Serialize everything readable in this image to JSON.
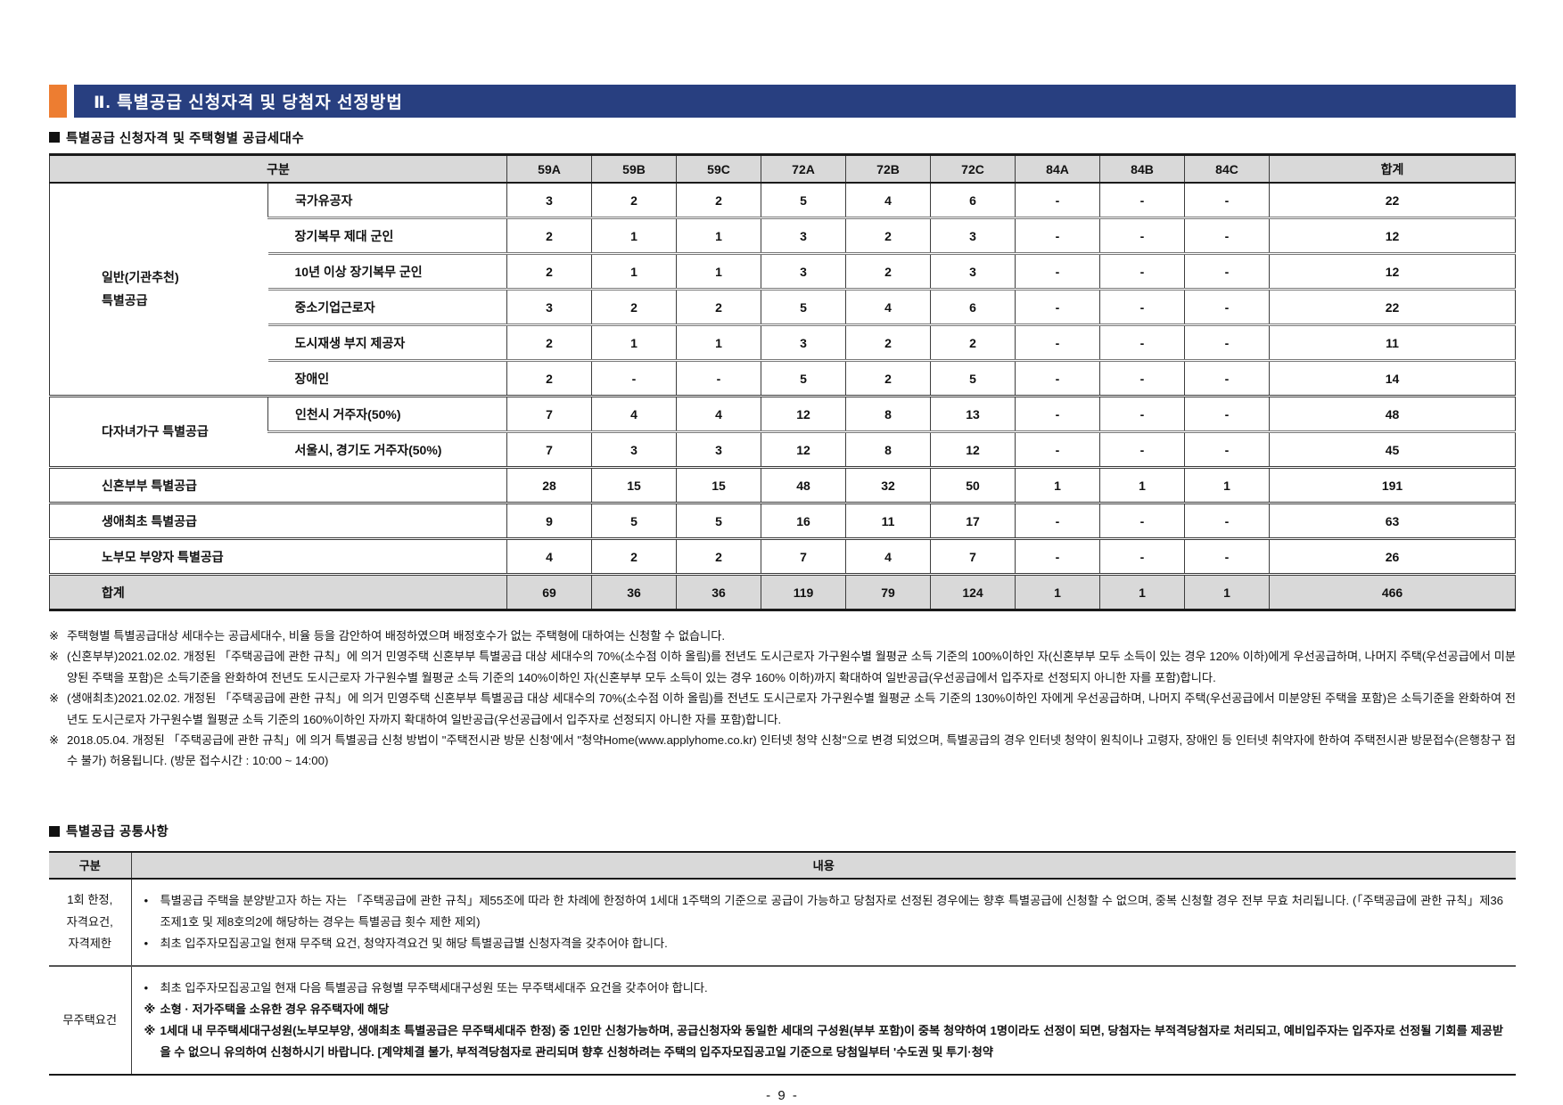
{
  "banner": {
    "title": "Ⅱ. 특별공급 신청자격 및 당첨자 선정방법"
  },
  "colors": {
    "accent_orange": "#ED7D31",
    "banner_navy": "#283F80",
    "table_header_gray": "#D9D9D9"
  },
  "supply_section": {
    "heading": "특별공급 신청자격 및 주택형별 공급세대수",
    "columns": [
      "구분",
      "59A",
      "59B",
      "59C",
      "72A",
      "72B",
      "72C",
      "84A",
      "84B",
      "84C",
      "합계"
    ],
    "rows": [
      {
        "group": "일반(기관추천)\n특별공급",
        "group_span": 6,
        "label": "국가유공자",
        "values": [
          "3",
          "2",
          "2",
          "5",
          "4",
          "6",
          "-",
          "-",
          "-",
          "22"
        ]
      },
      {
        "label": "장기복무 제대 군인",
        "values": [
          "2",
          "1",
          "1",
          "3",
          "2",
          "3",
          "-",
          "-",
          "-",
          "12"
        ]
      },
      {
        "label": "10년 이상 장기복무 군인",
        "values": [
          "2",
          "1",
          "1",
          "3",
          "2",
          "3",
          "-",
          "-",
          "-",
          "12"
        ]
      },
      {
        "label": "중소기업근로자",
        "values": [
          "3",
          "2",
          "2",
          "5",
          "4",
          "6",
          "-",
          "-",
          "-",
          "22"
        ]
      },
      {
        "label": "도시재생 부지 제공자",
        "values": [
          "2",
          "1",
          "1",
          "3",
          "2",
          "2",
          "-",
          "-",
          "-",
          "11"
        ]
      },
      {
        "label": "장애인",
        "values": [
          "2",
          "-",
          "-",
          "5",
          "2",
          "5",
          "-",
          "-",
          "-",
          "14"
        ]
      },
      {
        "group": "다자녀가구 특별공급",
        "group_span": 2,
        "label": "인천시 거주자(50%)",
        "values": [
          "7",
          "4",
          "4",
          "12",
          "8",
          "13",
          "-",
          "-",
          "-",
          "48"
        ]
      },
      {
        "label": "서울시, 경기도 거주자(50%)",
        "values": [
          "7",
          "3",
          "3",
          "12",
          "8",
          "12",
          "-",
          "-",
          "-",
          "45"
        ]
      },
      {
        "label": "신혼부부 특별공급",
        "colspan": 2,
        "values": [
          "28",
          "15",
          "15",
          "48",
          "32",
          "50",
          "1",
          "1",
          "1",
          "191"
        ]
      },
      {
        "label": "생애최초 특별공급",
        "colspan": 2,
        "values": [
          "9",
          "5",
          "5",
          "16",
          "11",
          "17",
          "-",
          "-",
          "-",
          "63"
        ]
      },
      {
        "label": "노부모 부양자 특별공급",
        "colspan": 2,
        "values": [
          "4",
          "2",
          "2",
          "7",
          "4",
          "7",
          "-",
          "-",
          "-",
          "26"
        ]
      },
      {
        "label": "합계",
        "colspan": 2,
        "total": true,
        "values": [
          "69",
          "36",
          "36",
          "119",
          "79",
          "124",
          "1",
          "1",
          "1",
          "466"
        ]
      }
    ],
    "notes": [
      {
        "marker": "※",
        "text": "주택형별 특별공급대상 세대수는 공급세대수, 비율 등을 감안하여 배정하였으며 배정호수가 없는 주택형에 대하여는 신청할 수 없습니다."
      },
      {
        "marker": "※",
        "text": "(신혼부부)2021.02.02. 개정된 「주택공급에 관한 규칙」에 의거 민영주택 신혼부부 특별공급 대상 세대수의 70%(소수점 이하 올림)를 전년도 도시근로자 가구원수별 월평균 소득 기준의 100%이하인 자(신혼부부 모두 소득이 있는 경우 120% 이하)에게 우선공급하며, 나머지 주택(우선공급에서 미분양된 주택을 포함)은 소득기준을 완화하여 전년도 도시근로자 가구원수별 월평균 소득 기준의 140%이하인 자(신혼부부 모두 소득이 있는 경우 160% 이하)까지 확대하여 일반공급(우선공급에서 입주자로 선정되지 아니한 자를 포함)합니다."
      },
      {
        "marker": "※",
        "text": "(생애최초)2021.02.02. 개정된 「주택공급에 관한 규칙」에 의거 민영주택 신혼부부 특별공급 대상 세대수의 70%(소수점 이하 올림)를 전년도 도시근로자 가구원수별 월평균 소득 기준의 130%이하인 자에게 우선공급하며, 나머지 주택(우선공급에서 미분양된 주택을 포함)은 소득기준을 완화하여 전년도 도시근로자 가구원수별 월평균 소득 기준의 160%이하인 자까지 확대하여 일반공급(우선공급에서 입주자로 선정되지 아니한 자를 포함)합니다."
      },
      {
        "marker": "※",
        "text": "2018.05.04. 개정된 「주택공급에 관한 규칙」에 의거 특별공급 신청 방법이 \"주택전시관 방문 신청'에서 \"청약Home(www.applyhome.co.kr) 인터넷 청약 신청\"으로 변경 되었으며, 특별공급의 경우 인터넷 청약이 원칙이나 고령자, 장애인 등 인터넷 취약자에 한하여 주택전시관 방문접수(은행창구 접수 불가) 허용됩니다. (방문 접수시간 : 10:00 ~ 14:00)"
      }
    ]
  },
  "common_section": {
    "heading": "특별공급 공통사항",
    "columns": [
      "구분",
      "내용"
    ],
    "rows": [
      {
        "label": "1회 한정,\n자격요건,\n자격제한",
        "items": [
          {
            "marker": "•",
            "bold": false,
            "text": "특별공급 주택을 분양받고자 하는 자는 「주택공급에 관한 규칙」제55조에 따라 한 차례에 한정하여 1세대 1주택의 기준으로 공급이 가능하고 당첨자로 선정된 경우에는 향후 특별공급에 신청할 수 없으며, 중복 신청할 경우 전부 무효 처리됩니다. (「주택공급에 관한 규칙」제36조제1호 및 제8호의2에 해당하는 경우는 특별공급 횟수 제한 제외)"
          },
          {
            "marker": "•",
            "bold": false,
            "text": "최초 입주자모집공고일 현재 무주택 요건, 청약자격요건 및 해당 특별공급별 신청자격을 갖추어야 합니다."
          }
        ]
      },
      {
        "label": "무주택요건",
        "items": [
          {
            "marker": "•",
            "bold": false,
            "text": "최초 입주자모집공고일 현재 다음 특별공급 유형별 무주택세대구성원 또는 무주택세대주 요건을 갖추어야 합니다."
          },
          {
            "marker": "※",
            "bold": true,
            "text": "소형 · 저가주택을 소유한 경우 유주택자에 해당"
          },
          {
            "marker": "※",
            "bold": true,
            "text": "1세대 내 무주택세대구성원(노부모부양, 생애최초 특별공급은 무주택세대주 한정) 중 1인만 신청가능하며, 공급신청자와 동일한 세대의 구성원(부부 포함)이 중복 청약하여 1명이라도 선정이 되면, 당첨자는 부적격당첨자로 처리되고, 예비입주자는 입주자로 선정될 기회를 제공받을 수 없으니 유의하여 신청하시기 바랍니다. [계약체결 불가, 부적격당첨자로 관리되며 향후 신청하려는 주택의 입주자모집공고일 기준으로 당첨일부터 '수도권 및 투기·청약"
          }
        ]
      }
    ]
  },
  "footer": {
    "page_number": "- 9 -"
  }
}
